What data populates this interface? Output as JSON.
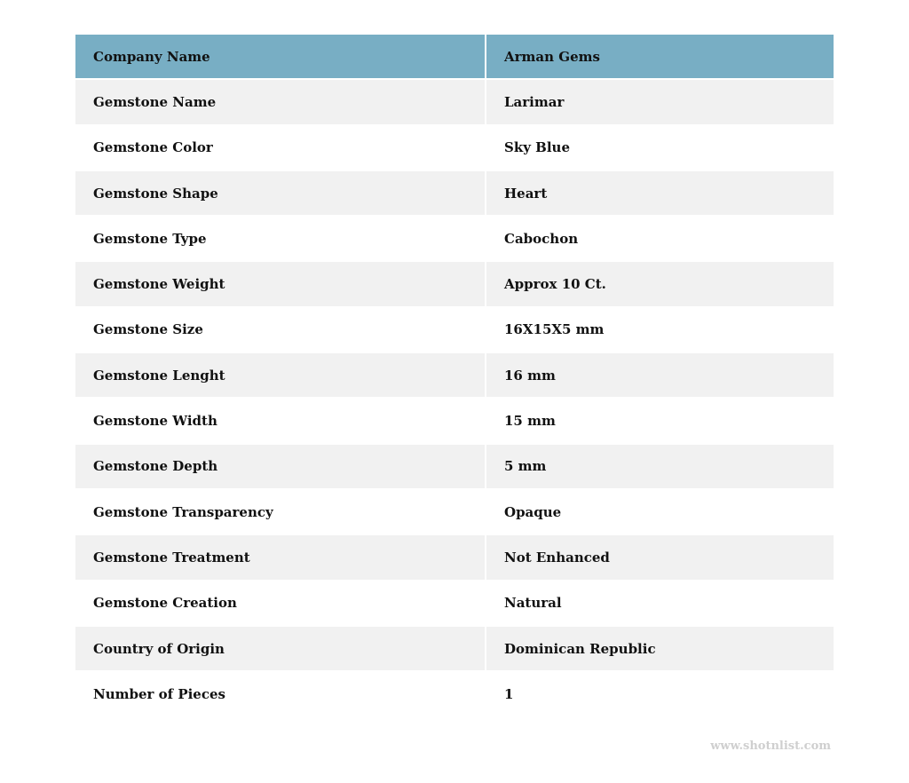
{
  "table": {
    "header": {
      "label": "Company Name",
      "value": "Arman Gems"
    },
    "header_color": "#78aec4",
    "rows": [
      {
        "label": "Gemstone Name",
        "value": "Larimar"
      },
      {
        "label": "Gemstone Color",
        "value": "Sky Blue"
      },
      {
        "label": "Gemstone Shape",
        "value": "Heart"
      },
      {
        "label": "Gemstone Type",
        "value": "Cabochon"
      },
      {
        "label": "Gemstone Weight",
        "value": "Approx 10 Ct."
      },
      {
        "label": "Gemstone Size",
        "value": "16X15X5 mm"
      },
      {
        "label": "Gemstone Lenght",
        "value": "16 mm"
      },
      {
        "label": "Gemstone Width",
        "value": "15 mm"
      },
      {
        "label": "Gemstone Depth",
        "value": "5 mm"
      },
      {
        "label": "Gemstone Transparency",
        "value": "Opaque"
      },
      {
        "label": "Gemstone Treatment",
        "value": "Not Enhanced"
      },
      {
        "label": "Gemstone Creation",
        "value": "Natural"
      },
      {
        "label": "Country of Origin",
        "value": "Dominican Republic"
      },
      {
        "label": "Number of Pieces",
        "value": "1"
      }
    ]
  },
  "watermark": "www.shotnlist.com"
}
